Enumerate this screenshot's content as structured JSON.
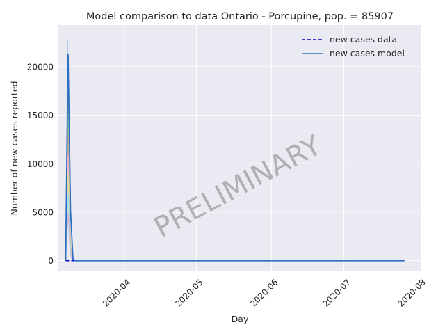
{
  "chart_data": {
    "type": "line",
    "title": "Model comparison to data Ontario - Porcupine, pop. = 85907",
    "xlabel": "Day",
    "ylabel": "Number of new cases reported",
    "xlim": [
      "2020-03-05",
      "2020-08-02"
    ],
    "ylim": [
      -1100,
      24300
    ],
    "x_ticks": [
      "2020-04",
      "2020-05",
      "2020-06",
      "2020-07",
      "2020-08"
    ],
    "x_tick_dates": [
      "2020-04-01",
      "2020-05-01",
      "2020-06-01",
      "2020-07-01",
      "2020-08-01"
    ],
    "y_ticks": [
      0,
      5000,
      10000,
      15000,
      20000
    ],
    "y_tick_labels": [
      "0",
      "5000",
      "10000",
      "15000",
      "20000"
    ],
    "grid": true,
    "legend_position": "top-right",
    "legend": [
      {
        "label": "new cases data",
        "style": "dashed",
        "color": "#0000cc"
      },
      {
        "label": "new cases model",
        "style": "solid",
        "color": "#2a6fc0"
      }
    ],
    "watermark": "PRELIMINARY",
    "series": [
      {
        "name": "new cases data",
        "style": "dashed",
        "color": "#0000cc",
        "x": [
          "2020-03-08",
          "2020-07-26"
        ],
        "values": [
          0,
          0
        ]
      },
      {
        "name": "new cases model",
        "style": "solid",
        "color": "#2a6fc0",
        "x": [
          "2020-03-08",
          "2020-03-09",
          "2020-03-10",
          "2020-03-11",
          "2020-03-12",
          "2020-07-26"
        ],
        "values": [
          0,
          21300,
          5200,
          200,
          0,
          0
        ]
      }
    ],
    "ensemble_colors": [
      "#aec7e8",
      "#ff9896",
      "#98df8a",
      "#c49c94",
      "#f7b6d2",
      "#dbdb8d",
      "#9edae5",
      "#c5b0d5"
    ],
    "ensemble_peaks": [
      22700,
      19000,
      16500,
      13000,
      11000,
      9000,
      7000,
      5000
    ]
  }
}
